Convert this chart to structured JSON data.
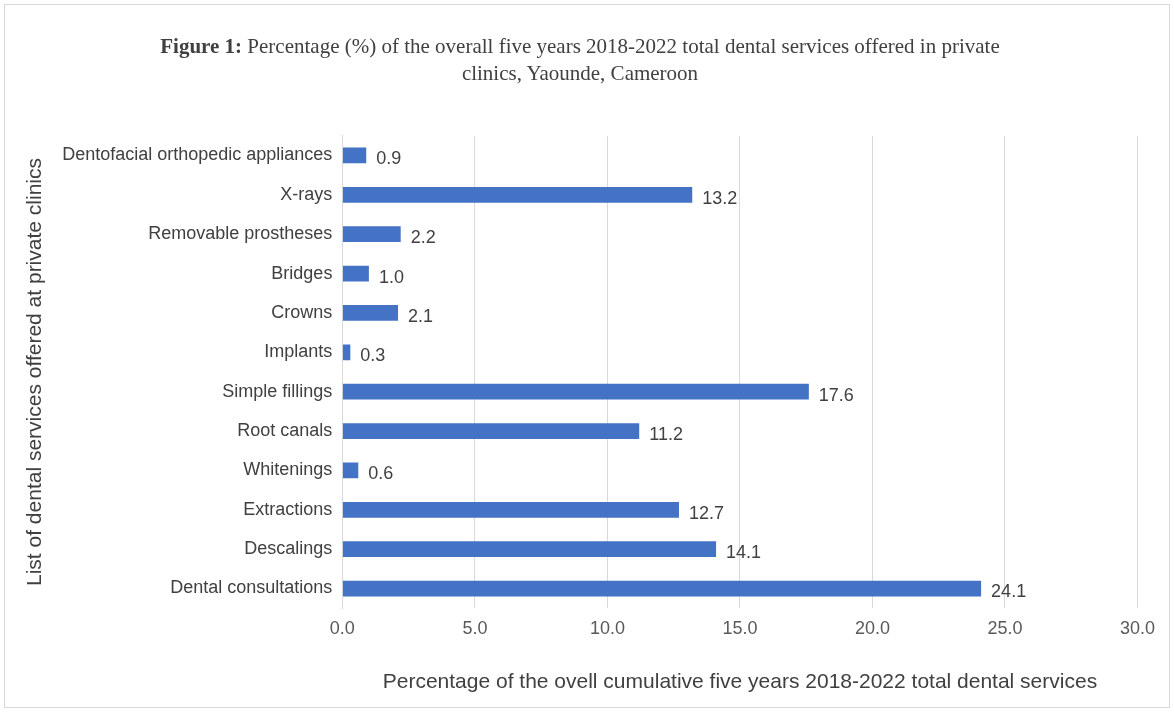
{
  "chart_data": {
    "type": "bar",
    "orientation": "horizontal",
    "title": "Figure 1: Percentage (%) of the overall five years 2018-2022 total dental services offered in private clinics, Yaounde, Cameroon",
    "xlabel": "Percentage of the ovell cumulative five years 2018-2022 total dental services",
    "ylabel": "List of dental services offered at private clinics",
    "categories": [
      "Dentofacial orthopedic appliances",
      "X-rays",
      "Removable prostheses",
      "Bridges",
      "Crowns",
      "Implants",
      "Simple fillings",
      "Root canals",
      "Whitenings",
      "Extractions",
      "Descalings",
      "Dental consultations"
    ],
    "values": [
      0.9,
      13.2,
      2.2,
      1.0,
      2.1,
      0.3,
      17.6,
      11.2,
      0.6,
      12.7,
      14.1,
      24.1
    ],
    "value_labels": [
      "0.9",
      "13.2",
      "2.2",
      "1.0",
      "2.1",
      "0.3",
      "17.6",
      "11.2",
      "0.6",
      "12.7",
      "14.1",
      "24.1"
    ],
    "color": "#4472c4",
    "xlim": [
      0,
      30
    ],
    "xticks": [
      {
        "value": 0,
        "label": "0.0"
      },
      {
        "value": 5,
        "label": "5.0"
      },
      {
        "value": 10,
        "label": "10.0"
      },
      {
        "value": 15,
        "label": "15.0"
      },
      {
        "value": 20,
        "label": "20.0"
      },
      {
        "value": 25,
        "label": "25.0"
      },
      {
        "value": 30,
        "label": "30.0"
      }
    ],
    "grid": "x",
    "legend": false
  }
}
